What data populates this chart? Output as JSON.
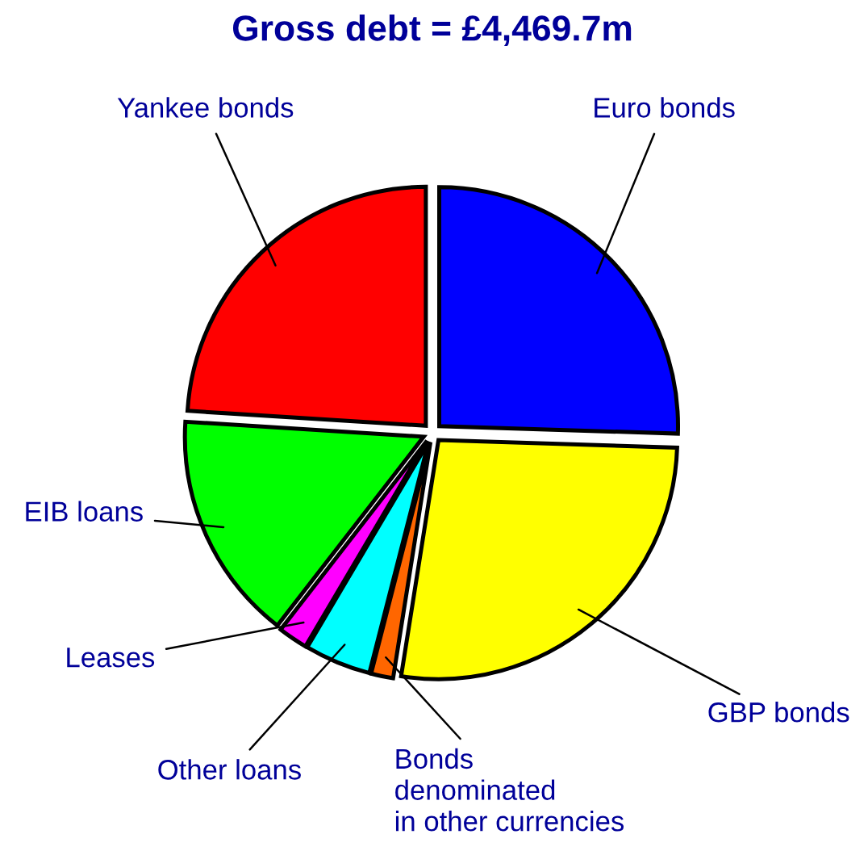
{
  "chart_data": {
    "type": "pie",
    "title": "Gross debt = £4,469.7m",
    "categories": [
      "Euro bonds",
      "GBP bonds",
      "Bonds\ndenominated\nin other currencies",
      "Other loans",
      "Leases",
      "EIB loans",
      "Yankee bonds"
    ],
    "values": [
      25.5,
      27,
      1.5,
      4.5,
      2,
      15.5,
      24
    ],
    "colors": [
      "#0000ff",
      "#ffff00",
      "#ff6600",
      "#00ffff",
      "#ff00ff",
      "#00ff00",
      "#ff0000"
    ]
  }
}
